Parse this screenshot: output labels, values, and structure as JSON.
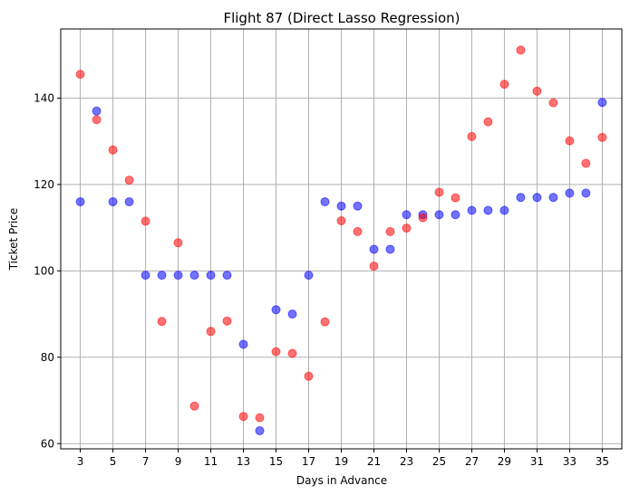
{
  "chart_data": {
    "type": "scatter",
    "title": "Flight 87 (Direct Lasso Regression)",
    "xlabel": "Days in Advance",
    "ylabel": "Ticket Price",
    "xlim": [
      1.8,
      36.2
    ],
    "ylim": [
      58.8,
      156.0
    ],
    "xticks": [
      3,
      5,
      7,
      9,
      11,
      13,
      15,
      17,
      19,
      21,
      23,
      25,
      27,
      29,
      31,
      33,
      35
    ],
    "yticks": [
      60,
      80,
      100,
      120,
      140
    ],
    "grid": true,
    "series": [
      {
        "color": "#0000ff",
        "x": [
          3,
          4,
          5,
          6,
          7,
          8,
          9,
          10,
          11,
          12,
          13,
          14,
          15,
          16,
          17,
          18,
          19,
          20,
          21,
          22,
          23,
          24,
          25,
          26,
          27,
          28,
          29,
          30,
          31,
          32,
          33,
          34,
          35
        ],
        "y": [
          116,
          137,
          116,
          116,
          99,
          99,
          99,
          99,
          99,
          99,
          83,
          63,
          91,
          90,
          99,
          116,
          115,
          115,
          105,
          105,
          113,
          113,
          113,
          113,
          114,
          114,
          114,
          117,
          117,
          117,
          118,
          118,
          139
        ]
      },
      {
        "color": "#ff0000",
        "x": [
          3,
          4,
          5,
          6,
          7,
          8,
          9,
          10,
          11,
          12,
          13,
          14,
          15,
          16,
          17,
          18,
          19,
          20,
          21,
          22,
          23,
          24,
          25,
          26,
          27,
          28,
          29,
          30,
          31,
          32,
          33,
          34,
          35
        ],
        "y": [
          145.5,
          135,
          128,
          121,
          111.5,
          88.3,
          106.5,
          68.7,
          86,
          88.4,
          66.3,
          66,
          81.3,
          80.9,
          75.6,
          88.2,
          111.6,
          109.1,
          101.1,
          109.1,
          109.9,
          112.3,
          118.2,
          116.9,
          131.1,
          134.5,
          143.2,
          151.1,
          141.6,
          138.9,
          130.1,
          124.9,
          130.9
        ]
      }
    ]
  }
}
